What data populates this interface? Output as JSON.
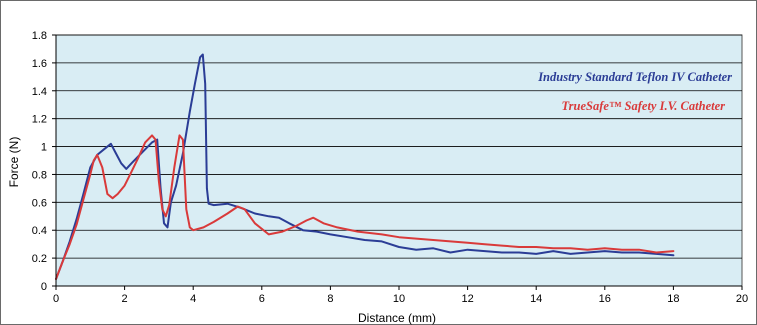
{
  "chart_data": {
    "type": "line",
    "title": "",
    "xlabel": "Distance (mm)",
    "ylabel": "Force (N)",
    "xlim": [
      0,
      20
    ],
    "ylim": [
      0,
      1.8
    ],
    "x_ticks": [
      0,
      2,
      4,
      6,
      8,
      10,
      12,
      14,
      16,
      18,
      20
    ],
    "y_ticks": [
      0,
      0.2,
      0.4,
      0.6,
      0.8,
      1,
      1.2,
      1.4,
      1.6,
      1.8
    ],
    "grid": "horizontal",
    "plot_background": "#d9edf4",
    "legend_placement": "top-right",
    "series": [
      {
        "name": "Industry Standard Teflon IV Catheter",
        "color": "#2b3d96",
        "points": [
          [
            0,
            0.05
          ],
          [
            0.2,
            0.18
          ],
          [
            0.4,
            0.32
          ],
          [
            0.6,
            0.48
          ],
          [
            0.8,
            0.66
          ],
          [
            1.0,
            0.85
          ],
          [
            1.2,
            0.94
          ],
          [
            1.4,
            0.98
          ],
          [
            1.6,
            1.02
          ],
          [
            1.75,
            0.95
          ],
          [
            1.9,
            0.88
          ],
          [
            2.05,
            0.84
          ],
          [
            2.2,
            0.88
          ],
          [
            2.4,
            0.93
          ],
          [
            2.6,
            0.98
          ],
          [
            2.8,
            1.03
          ],
          [
            2.95,
            1.05
          ],
          [
            3.05,
            0.7
          ],
          [
            3.15,
            0.45
          ],
          [
            3.25,
            0.42
          ],
          [
            3.35,
            0.6
          ],
          [
            3.5,
            0.72
          ],
          [
            3.7,
            0.95
          ],
          [
            3.9,
            1.25
          ],
          [
            4.05,
            1.45
          ],
          [
            4.2,
            1.64
          ],
          [
            4.28,
            1.66
          ],
          [
            4.35,
            1.45
          ],
          [
            4.4,
            0.7
          ],
          [
            4.45,
            0.59
          ],
          [
            4.6,
            0.58
          ],
          [
            5.0,
            0.59
          ],
          [
            5.4,
            0.56
          ],
          [
            5.8,
            0.52
          ],
          [
            6.2,
            0.5
          ],
          [
            6.5,
            0.49
          ],
          [
            6.8,
            0.45
          ],
          [
            7.2,
            0.4
          ],
          [
            7.6,
            0.39
          ],
          [
            8.0,
            0.37
          ],
          [
            8.5,
            0.35
          ],
          [
            9.0,
            0.33
          ],
          [
            9.5,
            0.32
          ],
          [
            10.0,
            0.28
          ],
          [
            10.5,
            0.26
          ],
          [
            11.0,
            0.27
          ],
          [
            11.5,
            0.24
          ],
          [
            12.0,
            0.26
          ],
          [
            12.5,
            0.25
          ],
          [
            13.0,
            0.24
          ],
          [
            13.5,
            0.24
          ],
          [
            14.0,
            0.23
          ],
          [
            14.5,
            0.25
          ],
          [
            15.0,
            0.23
          ],
          [
            15.5,
            0.24
          ],
          [
            16.0,
            0.25
          ],
          [
            16.5,
            0.24
          ],
          [
            17.0,
            0.24
          ],
          [
            17.5,
            0.23
          ],
          [
            18.0,
            0.22
          ]
        ]
      },
      {
        "name": "TrueSafe™ Safety I.V. Catheter",
        "color": "#d93a3a",
        "points": [
          [
            0,
            0.05
          ],
          [
            0.2,
            0.18
          ],
          [
            0.4,
            0.3
          ],
          [
            0.6,
            0.44
          ],
          [
            0.8,
            0.62
          ],
          [
            1.0,
            0.8
          ],
          [
            1.1,
            0.9
          ],
          [
            1.2,
            0.94
          ],
          [
            1.35,
            0.85
          ],
          [
            1.5,
            0.66
          ],
          [
            1.65,
            0.63
          ],
          [
            1.8,
            0.66
          ],
          [
            2.0,
            0.72
          ],
          [
            2.2,
            0.82
          ],
          [
            2.4,
            0.92
          ],
          [
            2.6,
            1.03
          ],
          [
            2.8,
            1.08
          ],
          [
            2.9,
            1.05
          ],
          [
            3.0,
            0.75
          ],
          [
            3.1,
            0.55
          ],
          [
            3.2,
            0.5
          ],
          [
            3.3,
            0.58
          ],
          [
            3.45,
            0.85
          ],
          [
            3.6,
            1.08
          ],
          [
            3.7,
            1.05
          ],
          [
            3.8,
            0.55
          ],
          [
            3.9,
            0.42
          ],
          [
            4.0,
            0.4
          ],
          [
            4.3,
            0.42
          ],
          [
            4.6,
            0.46
          ],
          [
            5.0,
            0.52
          ],
          [
            5.3,
            0.57
          ],
          [
            5.5,
            0.55
          ],
          [
            5.8,
            0.45
          ],
          [
            6.2,
            0.37
          ],
          [
            6.6,
            0.39
          ],
          [
            7.0,
            0.43
          ],
          [
            7.3,
            0.47
          ],
          [
            7.5,
            0.49
          ],
          [
            7.8,
            0.45
          ],
          [
            8.2,
            0.42
          ],
          [
            8.8,
            0.39
          ],
          [
            9.5,
            0.37
          ],
          [
            10.0,
            0.35
          ],
          [
            10.5,
            0.34
          ],
          [
            11.0,
            0.33
          ],
          [
            11.5,
            0.32
          ],
          [
            12.0,
            0.31
          ],
          [
            12.5,
            0.3
          ],
          [
            13.0,
            0.29
          ],
          [
            13.5,
            0.28
          ],
          [
            14.0,
            0.28
          ],
          [
            14.5,
            0.27
          ],
          [
            15.0,
            0.27
          ],
          [
            15.5,
            0.26
          ],
          [
            16.0,
            0.27
          ],
          [
            16.5,
            0.26
          ],
          [
            17.0,
            0.26
          ],
          [
            17.5,
            0.24
          ],
          [
            18.0,
            0.25
          ]
        ]
      }
    ]
  }
}
